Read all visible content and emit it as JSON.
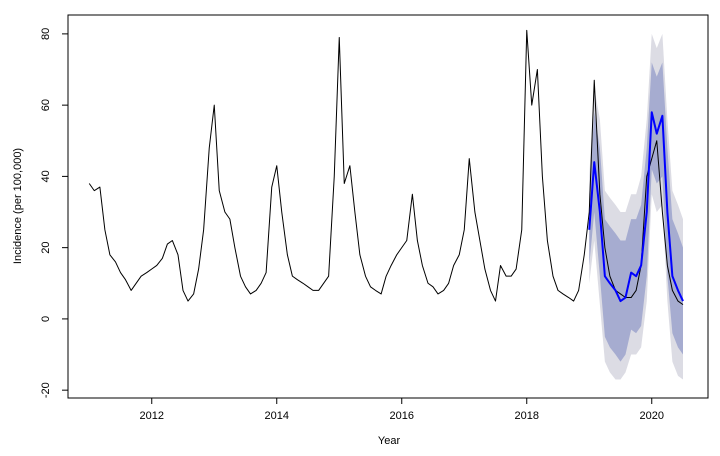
{
  "chart_data": {
    "type": "line",
    "xlabel": "Year",
    "ylabel": "Incidence (per 100,000)",
    "xlim": [
      2010.66,
      2020.9
    ],
    "ylim": [
      -22.2,
      85.3
    ],
    "xticks": [
      2012,
      2014,
      2016,
      2018,
      2020
    ],
    "yticks": [
      -20,
      0,
      20,
      40,
      60,
      80
    ],
    "series": [
      {
        "color": "#000000",
        "x": [
          2011.0,
          2011.08,
          2011.17,
          2011.25,
          2011.33,
          2011.42,
          2011.5,
          2011.58,
          2011.67,
          2011.75,
          2011.83,
          2011.92,
          2012.0,
          2012.08,
          2012.17,
          2012.25,
          2012.33,
          2012.42,
          2012.5,
          2012.58,
          2012.67,
          2012.75,
          2012.83,
          2012.92,
          2013.0,
          2013.08,
          2013.17,
          2013.25,
          2013.33,
          2013.42,
          2013.5,
          2013.58,
          2013.67,
          2013.75,
          2013.83,
          2013.92,
          2014.0,
          2014.08,
          2014.17,
          2014.25,
          2014.33,
          2014.42,
          2014.5,
          2014.58,
          2014.67,
          2014.75,
          2014.83,
          2014.92,
          2015.0,
          2015.08,
          2015.17,
          2015.25,
          2015.33,
          2015.42,
          2015.5,
          2015.58,
          2015.67,
          2015.75,
          2015.83,
          2015.92,
          2016.0,
          2016.08,
          2016.17,
          2016.25,
          2016.33,
          2016.42,
          2016.5,
          2016.58,
          2016.67,
          2016.75,
          2016.83,
          2016.92,
          2017.0,
          2017.08,
          2017.17,
          2017.25,
          2017.33,
          2017.42,
          2017.5,
          2017.58,
          2017.67,
          2017.75,
          2017.83,
          2017.92,
          2018.0,
          2018.08,
          2018.17,
          2018.25,
          2018.33,
          2018.42,
          2018.5,
          2018.58,
          2018.67,
          2018.75,
          2018.83,
          2018.92,
          2019.0,
          2019.08,
          2019.17,
          2019.25,
          2019.33,
          2019.42,
          2019.5,
          2019.58,
          2019.67,
          2019.75,
          2019.83,
          2019.92,
          2020.0,
          2020.08,
          2020.17,
          2020.25,
          2020.33,
          2020.42,
          2020.5
        ],
        "values": [
          38,
          36,
          37,
          25,
          18,
          16,
          13,
          11,
          8,
          10,
          12,
          13,
          14,
          15,
          17,
          21,
          22,
          18,
          8,
          5,
          7,
          14,
          25,
          48,
          60,
          36,
          30,
          28,
          20,
          12,
          9,
          7,
          8,
          10,
          13,
          37,
          43,
          30,
          18,
          12,
          11,
          10,
          9,
          8,
          8,
          10,
          12,
          40,
          79,
          38,
          43,
          30,
          18,
          12,
          9,
          8,
          7,
          12,
          15,
          18,
          20,
          22,
          35,
          22,
          15,
          10,
          9,
          7,
          8,
          10,
          15,
          18,
          25,
          45,
          30,
          22,
          14,
          8,
          5,
          15,
          12,
          12,
          14,
          25,
          81,
          60,
          70,
          40,
          22,
          12,
          8,
          7,
          6,
          5,
          8,
          18,
          30,
          67,
          35,
          20,
          12,
          8,
          7,
          6,
          6,
          8,
          15,
          40,
          45,
          50,
          30,
          15,
          8,
          5,
          4
        ]
      },
      {
        "color": "#0000ff",
        "x": [
          2019.0,
          2019.08,
          2019.17,
          2019.25,
          2019.33,
          2019.42,
          2019.5,
          2019.58,
          2019.67,
          2019.75,
          2019.83,
          2019.92,
          2020.0,
          2020.08,
          2020.17,
          2020.25,
          2020.33,
          2020.42,
          2020.5
        ],
        "values": [
          25,
          44,
          30,
          12,
          10,
          8,
          5,
          6,
          13,
          12,
          15,
          30,
          58,
          52,
          57,
          30,
          12,
          8,
          5
        ]
      }
    ],
    "bands": [
      {
        "color": "#dcdce4",
        "lower": [
          10,
          22,
          4,
          -12,
          -15,
          -17,
          -17,
          -15,
          -10,
          -10,
          -8,
          5,
          35,
          30,
          32,
          5,
          -12,
          -16,
          -17
        ],
        "upper": [
          40,
          65,
          56,
          36,
          34,
          32,
          30,
          30,
          35,
          35,
          40,
          56,
          80,
          76,
          80,
          56,
          36,
          32,
          28
        ]
      },
      {
        "color": "#a6acd0",
        "lower": [
          15,
          30,
          12,
          -5,
          -8,
          -10,
          -12,
          -10,
          -3,
          -4,
          -2,
          12,
          42,
          38,
          40,
          12,
          -4,
          -8,
          -10
        ],
        "upper": [
          35,
          58,
          48,
          28,
          26,
          24,
          22,
          22,
          28,
          28,
          32,
          48,
          72,
          68,
          72,
          48,
          28,
          24,
          20
        ]
      }
    ]
  }
}
